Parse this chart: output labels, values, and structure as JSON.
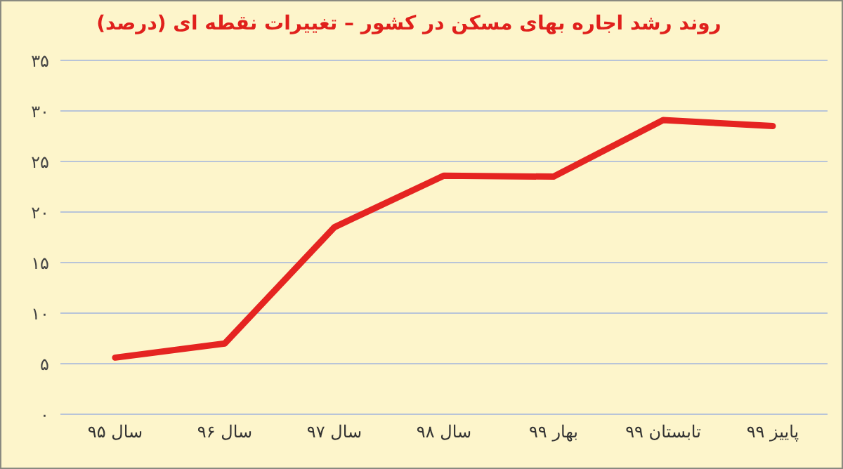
{
  "chart_data": {
    "type": "line",
    "title": "روند رشد اجاره بهای مسکن در کشور – تغییرات نقطه ای (درصد)",
    "categories": [
      "سال ۹۵",
      "سال ۹۶",
      "سال ۹۷",
      "سال ۹۸",
      "بهار ۹۹",
      "تابستان ۹۹",
      "پاییز ۹۹"
    ],
    "series": [
      {
        "color": "#e52421",
        "values": [
          5.6,
          7,
          18.5,
          23.6,
          23.5,
          29.1,
          28.5
        ]
      }
    ],
    "ylim": [
      0,
      35
    ],
    "yticks": [
      {
        "value": 0,
        "label": "۰"
      },
      {
        "value": 5,
        "label": "۵"
      },
      {
        "value": 10,
        "label": "۱۰"
      },
      {
        "value": 15,
        "label": "۱۵"
      },
      {
        "value": 20,
        "label": "۲۰"
      },
      {
        "value": 25,
        "label": "۲۵"
      },
      {
        "value": 30,
        "label": "۳۰"
      },
      {
        "value": 35,
        "label": "۳۵"
      }
    ],
    "grid": "y",
    "legend": false,
    "marker": "none",
    "line_style": "solid"
  }
}
